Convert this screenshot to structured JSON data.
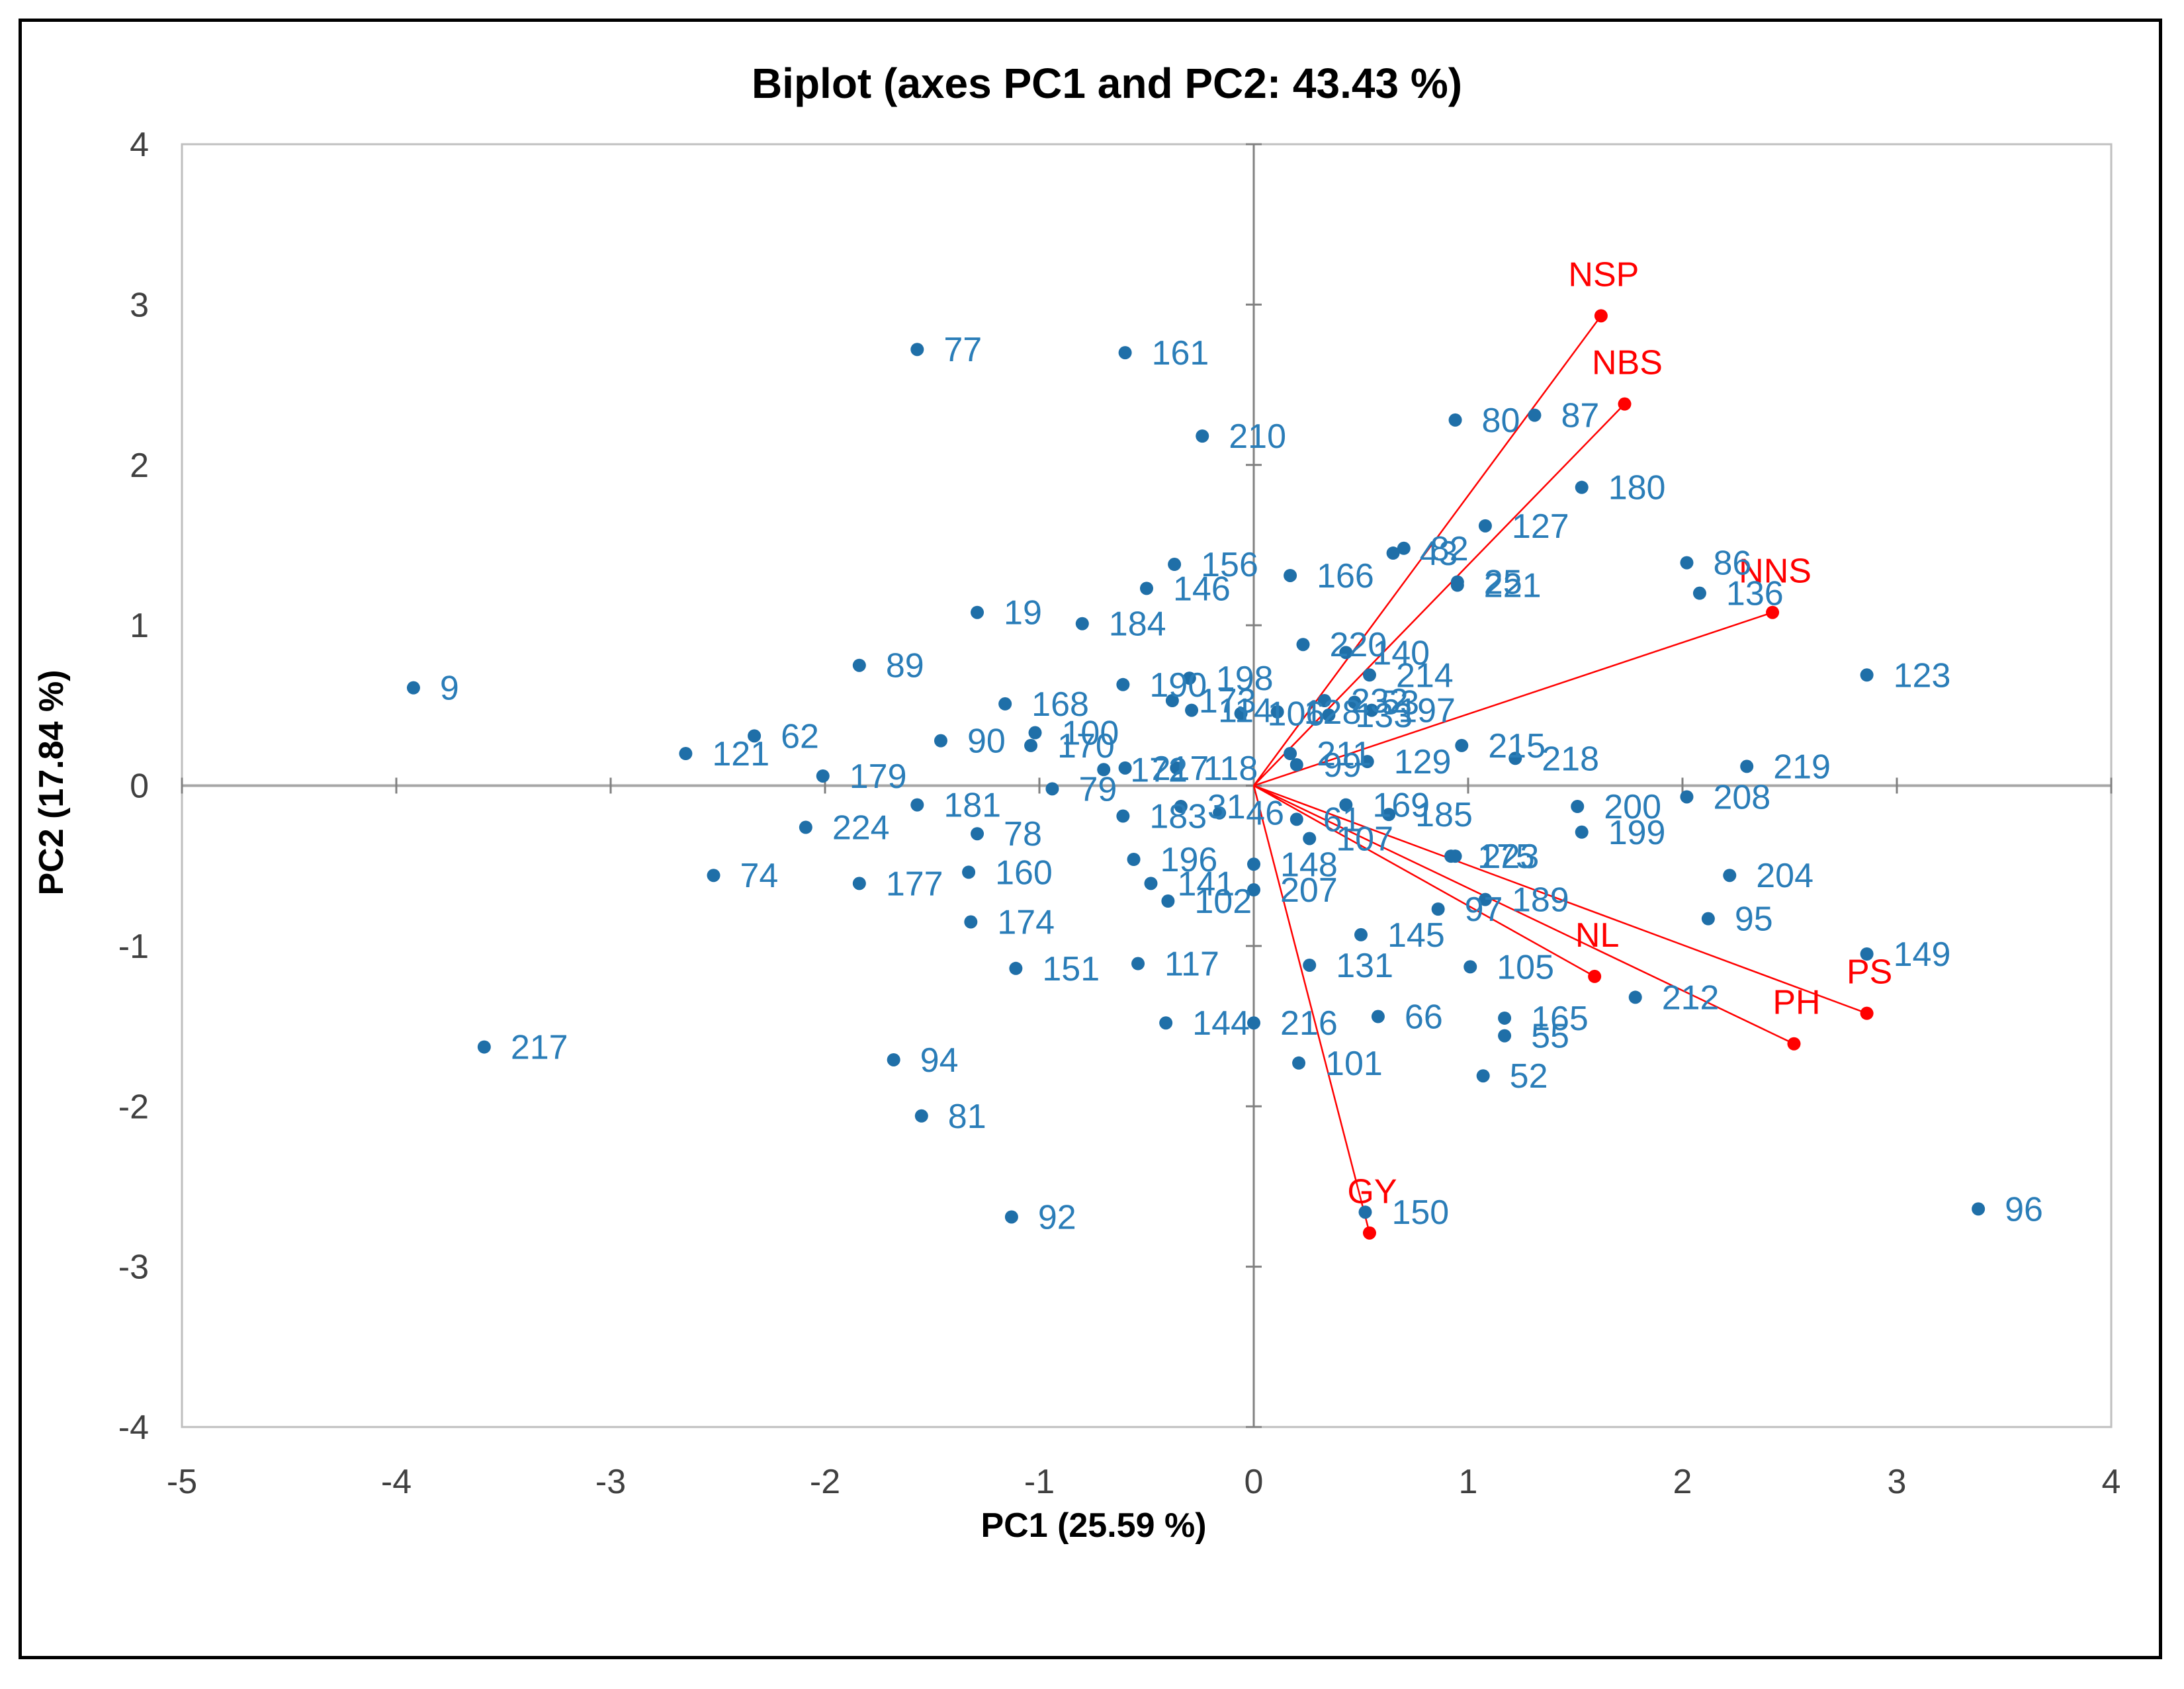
{
  "chart_data": {
    "type": "scatter",
    "title": "Biplot (axes PC1 and PC2: 43.43 %)",
    "xlabel": "PC1 (25.59 %)",
    "ylabel": "PC2 (17.84 %)",
    "xlim": [
      -5,
      4
    ],
    "ylim": [
      -4,
      4
    ],
    "xticks": [
      -5,
      -4,
      -3,
      -2,
      -1,
      0,
      1,
      2,
      3,
      4
    ],
    "yticks": [
      -4,
      -3,
      -2,
      -1,
      0,
      1,
      2,
      3,
      4
    ],
    "colors": {
      "observations": "#1f6fa8",
      "observation_labels": "#2a7db8",
      "variables": "#ff0000",
      "axes": "#a6a6a6"
    },
    "observations": [
      {
        "label": "9",
        "x": -3.92,
        "y": 0.61
      },
      {
        "label": "217",
        "x": -3.59,
        "y": -1.63
      },
      {
        "label": "121",
        "x": -2.65,
        "y": 0.2
      },
      {
        "label": "62",
        "x": -2.33,
        "y": 0.31
      },
      {
        "label": "74",
        "x": -2.52,
        "y": -0.56
      },
      {
        "label": "224",
        "x": -2.09,
        "y": -0.26
      },
      {
        "label": "179",
        "x": -2.01,
        "y": 0.06
      },
      {
        "label": "89",
        "x": -1.84,
        "y": 0.75
      },
      {
        "label": "177",
        "x": -1.84,
        "y": -0.61
      },
      {
        "label": "77",
        "x": -1.57,
        "y": 2.72
      },
      {
        "label": "94",
        "x": -1.68,
        "y": -1.71
      },
      {
        "label": "81",
        "x": -1.55,
        "y": -2.06
      },
      {
        "label": "181",
        "x": -1.57,
        "y": -0.12
      },
      {
        "label": "90",
        "x": -1.46,
        "y": 0.28
      },
      {
        "label": "19",
        "x": -1.29,
        "y": 1.08
      },
      {
        "label": "78",
        "x": -1.29,
        "y": -0.3
      },
      {
        "label": "160",
        "x": -1.33,
        "y": -0.54
      },
      {
        "label": "174",
        "x": -1.32,
        "y": -0.85
      },
      {
        "label": "168",
        "x": -1.16,
        "y": 0.51
      },
      {
        "label": "151",
        "x": -1.11,
        "y": -1.14
      },
      {
        "label": "92",
        "x": -1.13,
        "y": -2.69
      },
      {
        "label": "100",
        "x": -1.02,
        "y": 0.33
      },
      {
        "label": "170",
        "x": -1.04,
        "y": 0.25
      },
      {
        "label": "184",
        "x": -0.8,
        "y": 1.01
      },
      {
        "label": "161",
        "x": -0.6,
        "y": 2.7
      },
      {
        "label": "79",
        "x": -0.94,
        "y": -0.02
      },
      {
        "label": "172",
        "x": -0.7,
        "y": 0.1
      },
      {
        "label": "217",
        "x": -0.6,
        "y": 0.11
      },
      {
        "label": "183",
        "x": -0.61,
        "y": -0.19
      },
      {
        "label": "196",
        "x": -0.56,
        "y": -0.46
      },
      {
        "label": "117",
        "x": -0.54,
        "y": -1.11
      },
      {
        "label": "210",
        "x": -0.24,
        "y": 2.18
      },
      {
        "label": "156",
        "x": -0.37,
        "y": 1.38
      },
      {
        "label": "146",
        "x": -0.5,
        "y": 1.23
      },
      {
        "label": "190",
        "x": -0.61,
        "y": 0.63
      },
      {
        "label": "198",
        "x": -0.3,
        "y": 0.67
      },
      {
        "label": "173",
        "x": -0.38,
        "y": 0.53
      },
      {
        "label": "114",
        "x": -0.29,
        "y": 0.47
      },
      {
        "label": "118",
        "x": -0.36,
        "y": 0.11
      },
      {
        "label": "31",
        "x": -0.34,
        "y": -0.13
      },
      {
        "label": "46",
        "x": -0.16,
        "y": -0.17
      },
      {
        "label": "141",
        "x": -0.48,
        "y": -0.61
      },
      {
        "label": "102",
        "x": -0.4,
        "y": -0.72
      },
      {
        "label": "144",
        "x": -0.41,
        "y": -1.48
      },
      {
        "label": "216",
        "x": 0.0,
        "y": -1.48
      },
      {
        "label": "207",
        "x": 0.0,
        "y": -0.65
      },
      {
        "label": "148",
        "x": 0.0,
        "y": -0.49
      },
      {
        "label": "61",
        "x": 0.2,
        "y": -0.21
      },
      {
        "label": "166",
        "x": 0.17,
        "y": 1.31
      },
      {
        "label": "220",
        "x": 0.23,
        "y": 0.88
      },
      {
        "label": "140",
        "x": 0.43,
        "y": 0.83
      },
      {
        "label": "214",
        "x": 0.54,
        "y": 0.69
      },
      {
        "label": "53",
        "x": 0.47,
        "y": 0.52
      },
      {
        "label": "232",
        "x": 0.33,
        "y": 0.53
      },
      {
        "label": "197",
        "x": 0.55,
        "y": 0.47
      },
      {
        "label": "133",
        "x": 0.35,
        "y": 0.44
      },
      {
        "label": "128",
        "x": 0.11,
        "y": 0.46
      },
      {
        "label": "106",
        "x": -0.06,
        "y": 0.45
      },
      {
        "label": "211",
        "x": 0.17,
        "y": 0.2
      },
      {
        "label": "99",
        "x": 0.2,
        "y": 0.13
      },
      {
        "label": "129",
        "x": 0.53,
        "y": 0.15
      },
      {
        "label": "169",
        "x": 0.43,
        "y": -0.12
      },
      {
        "label": "107",
        "x": 0.26,
        "y": -0.33
      },
      {
        "label": "185",
        "x": 0.63,
        "y": -0.18
      },
      {
        "label": "175",
        "x": 0.92,
        "y": -0.44
      },
      {
        "label": "131",
        "x": 0.26,
        "y": -1.12
      },
      {
        "label": "145",
        "x": 0.5,
        "y": -0.93
      },
      {
        "label": "66",
        "x": 0.58,
        "y": -1.44
      },
      {
        "label": "101",
        "x": 0.21,
        "y": -1.73
      },
      {
        "label": "150",
        "x": 0.52,
        "y": -2.66
      },
      {
        "label": "80",
        "x": 0.94,
        "y": 2.28
      },
      {
        "label": "87",
        "x": 1.31,
        "y": 2.31
      },
      {
        "label": "180",
        "x": 1.53,
        "y": 1.86
      },
      {
        "label": "127",
        "x": 1.08,
        "y": 1.62
      },
      {
        "label": "82",
        "x": 0.7,
        "y": 1.48
      },
      {
        "label": "43",
        "x": 0.65,
        "y": 1.45
      },
      {
        "label": "25",
        "x": 0.95,
        "y": 1.27
      },
      {
        "label": "221",
        "x": 0.95,
        "y": 1.25
      },
      {
        "label": "215",
        "x": 0.97,
        "y": 0.25
      },
      {
        "label": "218",
        "x": 1.22,
        "y": 0.17
      },
      {
        "label": "223",
        "x": 0.94,
        "y": -0.44
      },
      {
        "label": "97",
        "x": 0.86,
        "y": -0.77
      },
      {
        "label": "189",
        "x": 1.08,
        "y": -0.71
      },
      {
        "label": "105",
        "x": 1.01,
        "y": -1.13
      },
      {
        "label": "165",
        "x": 1.17,
        "y": -1.45
      },
      {
        "label": "55",
        "x": 1.17,
        "y": -1.56
      },
      {
        "label": "52",
        "x": 1.07,
        "y": -1.81
      },
      {
        "label": "212",
        "x": 1.78,
        "y": -1.32
      },
      {
        "label": "200",
        "x": 1.51,
        "y": -0.13
      },
      {
        "label": "199",
        "x": 1.53,
        "y": -0.29
      },
      {
        "label": "208",
        "x": 2.02,
        "y": -0.07
      },
      {
        "label": "219",
        "x": 2.3,
        "y": 0.12
      },
      {
        "label": "204",
        "x": 2.22,
        "y": -0.56
      },
      {
        "label": "95",
        "x": 2.12,
        "y": -0.83
      },
      {
        "label": "86",
        "x": 2.02,
        "y": 1.39
      },
      {
        "label": "136",
        "x": 2.08,
        "y": 1.2
      },
      {
        "label": "123",
        "x": 2.86,
        "y": 0.69
      },
      {
        "label": "149",
        "x": 2.86,
        "y": -1.05
      },
      {
        "label": "96",
        "x": 3.38,
        "y": -2.64
      }
    ],
    "variables": [
      {
        "label": "NSP",
        "x": 1.62,
        "y": 2.93
      },
      {
        "label": "NBS",
        "x": 1.73,
        "y": 2.38
      },
      {
        "label": "NNS",
        "x": 2.42,
        "y": 1.08
      },
      {
        "label": "PS",
        "x": 2.86,
        "y": -1.42
      },
      {
        "label": "PH",
        "x": 2.52,
        "y": -1.61
      },
      {
        "label": "NL",
        "x": 1.59,
        "y": -1.19
      },
      {
        "label": "GY",
        "x": 0.54,
        "y": -2.79
      }
    ]
  }
}
